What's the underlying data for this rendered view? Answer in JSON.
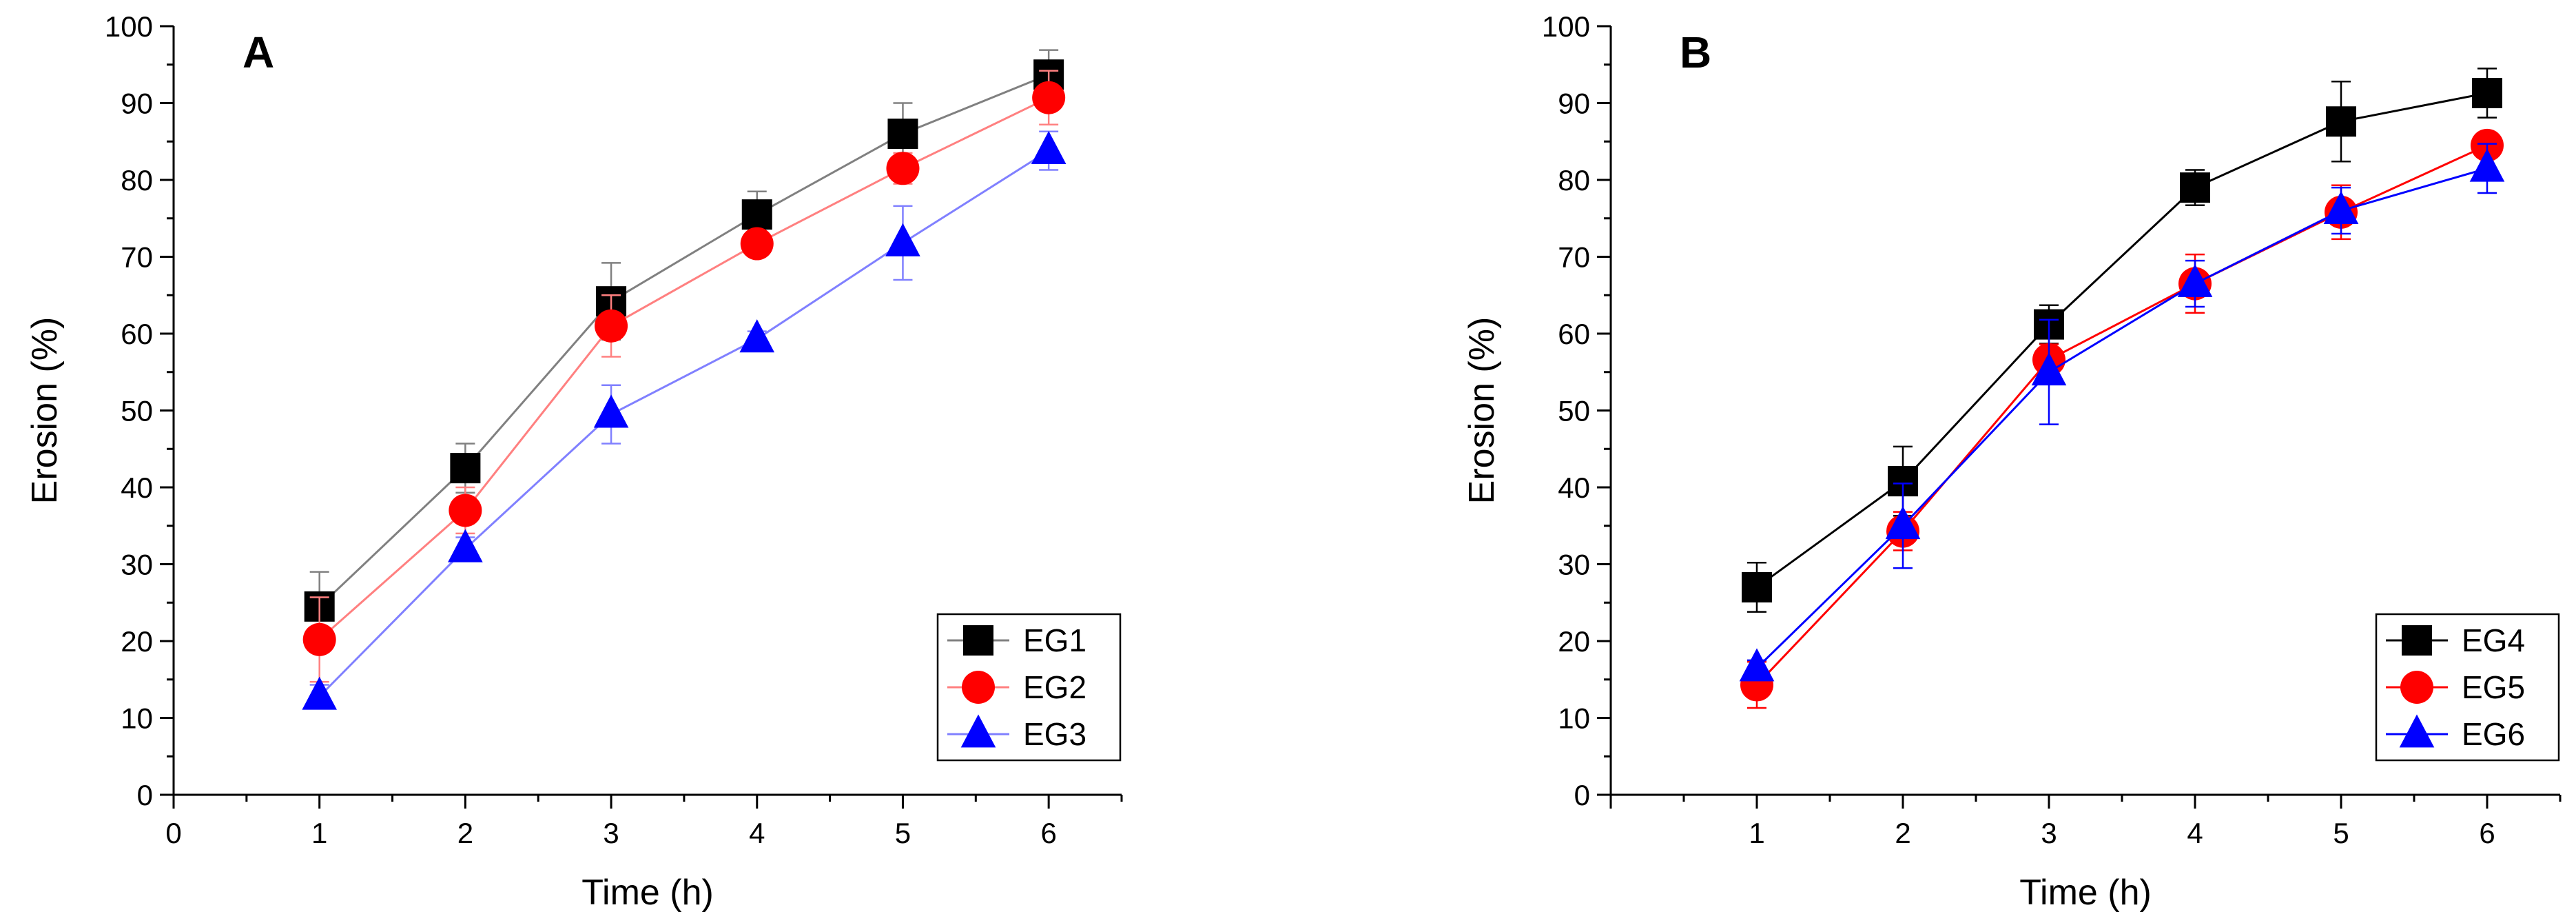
{
  "chart_data": [
    {
      "type": "line",
      "panel_label": "A",
      "xlabel": "Time (h)",
      "ylabel": "Erosion (%)",
      "xlim": [
        0,
        6.5
      ],
      "ylim": [
        0,
        100
      ],
      "xticks": [
        "0",
        "1",
        "2",
        "3",
        "4",
        "5",
        "6"
      ],
      "yticks": [
        "0",
        "10",
        "20",
        "30",
        "40",
        "50",
        "60",
        "70",
        "80",
        "90",
        "100"
      ],
      "legend_position": "bottom-right",
      "x": [
        1,
        2,
        3,
        4,
        5,
        6
      ],
      "series": [
        {
          "name": "EG1",
          "color": "#000000",
          "line_color": "#808080",
          "marker": "square",
          "values": [
            24.5,
            42.5,
            64.2,
            75.5,
            86.0,
            93.7
          ],
          "errors": [
            4.5,
            3.2,
            5.0,
            3.0,
            4.0,
            3.2
          ]
        },
        {
          "name": "EG2",
          "color": "#ff0000",
          "line_color": "#ff8080",
          "marker": "circle",
          "values": [
            20.2,
            37.0,
            61.0,
            71.7,
            81.5,
            90.7
          ],
          "errors": [
            5.5,
            3.0,
            4.0,
            1.0,
            2.0,
            3.5
          ]
        },
        {
          "name": "EG3",
          "color": "#0000ff",
          "line_color": "#8080ff",
          "marker": "triangle",
          "values": [
            12.8,
            32.0,
            49.5,
            59.3,
            71.8,
            83.8
          ],
          "errors": [
            1.5,
            1.5,
            3.8,
            1.0,
            4.8,
            2.5
          ]
        }
      ]
    },
    {
      "type": "line",
      "panel_label": "B",
      "xlabel": "Time (h)",
      "ylabel": "Erosion (%)",
      "xlim": [
        0,
        6.5
      ],
      "ylim": [
        0,
        100
      ],
      "xticks": [
        "",
        "1",
        "2",
        "3",
        "4",
        "5",
        "6"
      ],
      "yticks": [
        "0",
        "10",
        "20",
        "30",
        "40",
        "50",
        "60",
        "70",
        "80",
        "90",
        "100"
      ],
      "legend_position": "bottom-right",
      "x": [
        1,
        2,
        3,
        4,
        5,
        6
      ],
      "series": [
        {
          "name": "EG4",
          "color": "#000000",
          "line_color": "#000000",
          "marker": "square",
          "values": [
            27.0,
            40.8,
            61.2,
            79.0,
            87.6,
            91.3
          ],
          "errors": [
            3.2,
            4.5,
            2.5,
            2.3,
            5.2,
            3.2
          ]
        },
        {
          "name": "EG5",
          "color": "#ff0000",
          "line_color": "#ff0000",
          "marker": "circle",
          "values": [
            14.3,
            34.3,
            56.6,
            66.5,
            75.8,
            84.5
          ],
          "errors": [
            3.0,
            2.5,
            2.0,
            3.8,
            3.5,
            1.0
          ]
        },
        {
          "name": "EG6",
          "color": "#0000ff",
          "line_color": "#0000ff",
          "marker": "triangle",
          "values": [
            16.5,
            35.0,
            55.0,
            66.5,
            76.0,
            81.5
          ],
          "errors": [
            1.0,
            5.5,
            6.8,
            3.0,
            3.0,
            3.2
          ]
        }
      ]
    }
  ]
}
